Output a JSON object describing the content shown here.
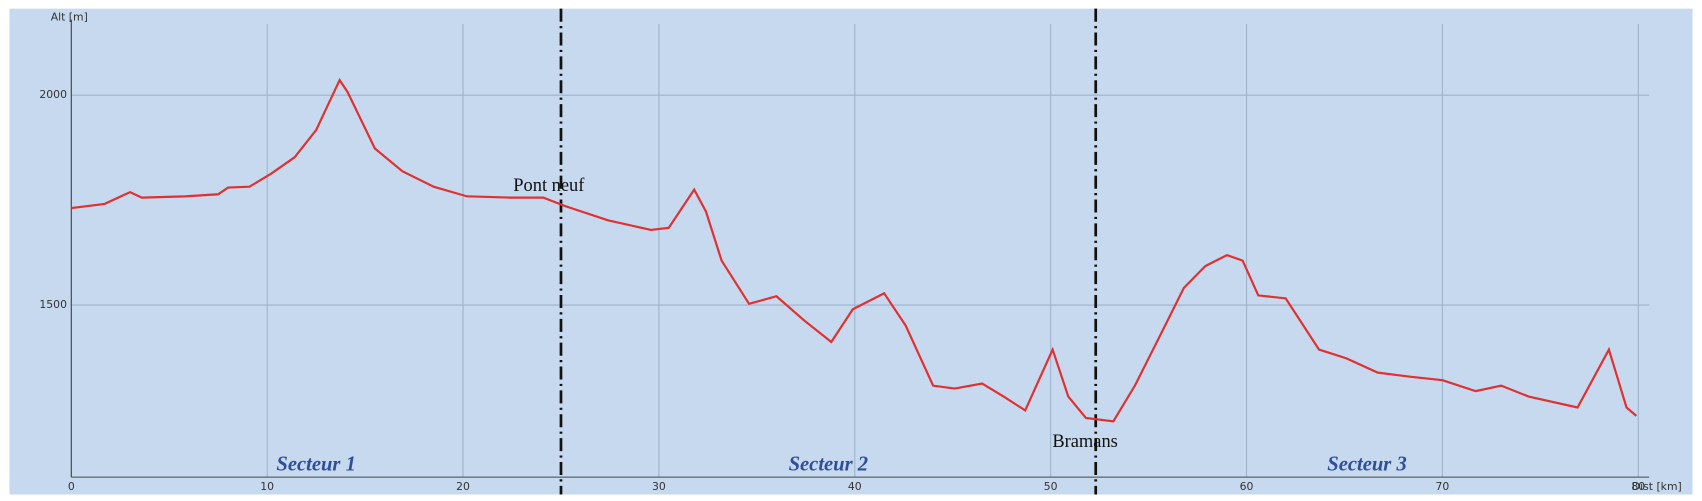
{
  "chart_data": {
    "type": "line",
    "x_label": "Dist [km]",
    "y_label": "Alt [m]",
    "x": [
      0,
      1.7,
      3.0,
      3.6,
      5.8,
      7.5,
      8.0,
      9.1,
      10.2,
      11.4,
      12.5,
      13.7,
      14.1,
      15.5,
      16.9,
      18.5,
      20.2,
      22.4,
      24.1,
      25.2,
      27.4,
      29.6,
      30.5,
      31.8,
      32.4,
      33.2,
      34.6,
      36.0,
      37.4,
      38.8,
      39.9,
      41.5,
      42.6,
      44.0,
      45.1,
      46.5,
      47.6,
      48.7,
      50.1,
      50.9,
      51.8,
      53.2,
      54.3,
      55.7,
      56.8,
      57.9,
      59.0,
      59.8,
      60.6,
      62.0,
      63.7,
      65.1,
      66.7,
      68.4,
      70.0,
      71.7,
      73.0,
      74.4,
      76.9,
      78.5,
      79.4,
      79.9
    ],
    "series": [
      {
        "color": "#e03030",
        "values": [
          1731,
          1741,
          1769,
          1756,
          1759,
          1764,
          1780,
          1782,
          1813,
          1852,
          1917,
          2036,
          2008,
          1873,
          1819,
          1782,
          1759,
          1756,
          1756,
          1736,
          1702,
          1679,
          1684,
          1775,
          1723,
          1606,
          1503,
          1521,
          1464,
          1412,
          1490,
          1528,
          1451,
          1308,
          1301,
          1313,
          1282,
          1249,
          1394,
          1282,
          1231,
          1223,
          1308,
          1438,
          1541,
          1593,
          1619,
          1606,
          1523,
          1516,
          1394,
          1373,
          1339,
          1329,
          1321,
          1295,
          1308,
          1282,
          1256,
          1394,
          1256,
          1236
        ]
      }
    ],
    "xlim": [
      0,
      80
    ],
    "xticks": [
      0,
      10,
      20,
      30,
      40,
      50,
      60,
      70,
      80
    ],
    "ylim": [
      1090,
      2170
    ],
    "yticks": [
      1500,
      2000
    ],
    "grid": true,
    "dividers": [
      25,
      52.3
    ],
    "sectors": [
      "Secteur 1",
      "Secteur 2",
      "Secteur 3"
    ],
    "annotations": [
      "Pont neuf",
      "Bramans"
    ]
  }
}
